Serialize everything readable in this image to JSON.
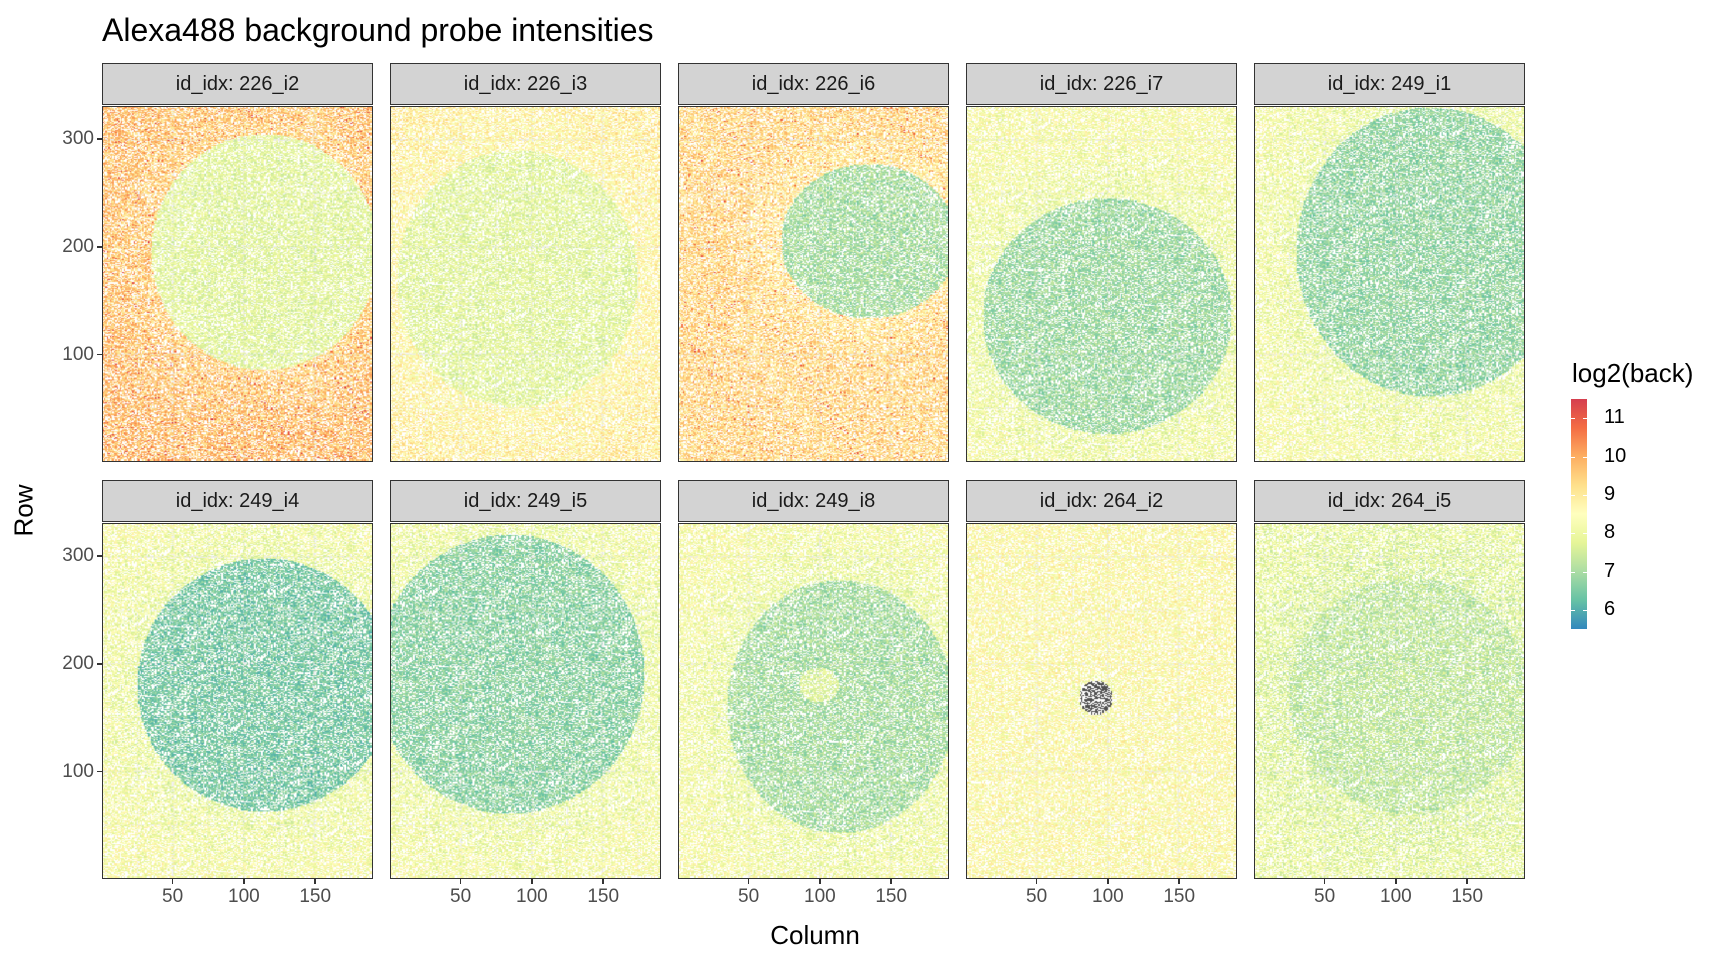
{
  "chart_data": {
    "type": "heatmap",
    "title": "Alexa488 background probe intensities",
    "xlabel": "Column",
    "ylabel": "Row",
    "xlim": [
      1,
      190
    ],
    "ylim": [
      1,
      330
    ],
    "x_ticks": [
      50,
      100,
      150
    ],
    "y_ticks": [
      100,
      200,
      300
    ],
    "grid": true,
    "legend": {
      "title": "log2(back)",
      "placement": "right",
      "ticks": [
        11,
        10,
        9,
        8,
        7,
        6
      ],
      "range": [
        5.5,
        11.5
      ],
      "palette": [
        "#3288bd",
        "#66c2a5",
        "#abdda4",
        "#e6f598",
        "#ffffbf",
        "#fee08b",
        "#fdae61",
        "#f46d43",
        "#d53e4f"
      ]
    },
    "facet_prefix": "id_idx: ",
    "panels": [
      {
        "id": "226_i2",
        "background": 9.4,
        "spot": {
          "col": 115,
          "row": 195,
          "rx": 80,
          "ry": 110,
          "value": 7.8
        }
      },
      {
        "id": "226_i3",
        "background": 8.6,
        "spot": {
          "col": 90,
          "row": 170,
          "rx": 85,
          "ry": 120,
          "value": 7.8
        }
      },
      {
        "id": "226_i6",
        "background": 9.0,
        "spot": {
          "col": 135,
          "row": 205,
          "rx": 62,
          "ry": 72,
          "value": 7.0
        }
      },
      {
        "id": "226_i7",
        "background": 8.0,
        "spot": {
          "col": 100,
          "row": 135,
          "rx": 88,
          "ry": 110,
          "value": 6.9
        }
      },
      {
        "id": "249_i1",
        "background": 8.0,
        "spot": {
          "col": 125,
          "row": 195,
          "rx": 95,
          "ry": 135,
          "value": 6.8
        }
      },
      {
        "id": "249_i4",
        "background": 8.0,
        "spot": {
          "col": 115,
          "row": 180,
          "rx": 90,
          "ry": 118,
          "value": 6.5
        }
      },
      {
        "id": "249_i5",
        "background": 8.0,
        "spot": {
          "col": 85,
          "row": 190,
          "rx": 95,
          "ry": 130,
          "value": 6.7
        }
      },
      {
        "id": "249_i8",
        "background": 8.0,
        "spot": {
          "col": 115,
          "row": 160,
          "rx": 80,
          "ry": 118,
          "value": 7.0
        }
      },
      {
        "id": "264_i2",
        "background": 8.2,
        "spot": {
          "col": 92,
          "row": 168,
          "rx": 12,
          "ry": 16,
          "value": null
        }
      },
      {
        "id": "264_i5",
        "background": 7.7,
        "spot": {
          "col": 110,
          "row": 170,
          "rx": 85,
          "ry": 110,
          "value": 7.3
        }
      }
    ]
  }
}
